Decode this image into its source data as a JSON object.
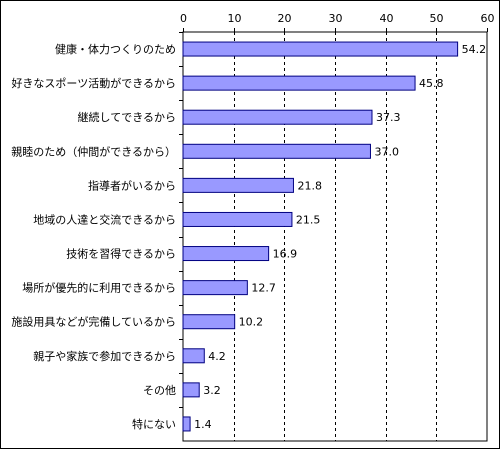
{
  "chart_data": {
    "type": "bar",
    "orientation": "horizontal",
    "categories": [
      "健康・体力つくりのため",
      "好きなスポーツ活動ができるから",
      "継続してできるから",
      "親睦のため（仲間ができるから）",
      "指導者がいるから",
      "地域の人達と交流できるから",
      "技術を習得できるから",
      "場所が優先的に利用できるから",
      "施設用具などが完備しているから",
      "親子や家族で参加できるから",
      "その他",
      "特にない"
    ],
    "values": [
      54.2,
      45.8,
      37.3,
      37.0,
      21.8,
      21.5,
      16.9,
      12.7,
      10.2,
      4.2,
      3.2,
      1.4
    ],
    "value_labels": [
      "54.2",
      "45.8",
      "37.3",
      "37.0",
      "21.8",
      "21.5",
      "16.9",
      "12.7",
      "10.2",
      "4.2",
      "3.2",
      "1.4"
    ],
    "xlim": [
      0,
      60
    ],
    "x_ticks": [
      0,
      10,
      20,
      30,
      40,
      50,
      60
    ],
    "x_tick_labels": [
      "0",
      "10",
      "20",
      "30",
      "40",
      "50",
      "60"
    ],
    "axis_position": "top",
    "grid": "vertical dashed",
    "bar_color": "#9999ff",
    "bar_edge_color": "#000080",
    "title": "",
    "xlabel": "",
    "ylabel": ""
  }
}
